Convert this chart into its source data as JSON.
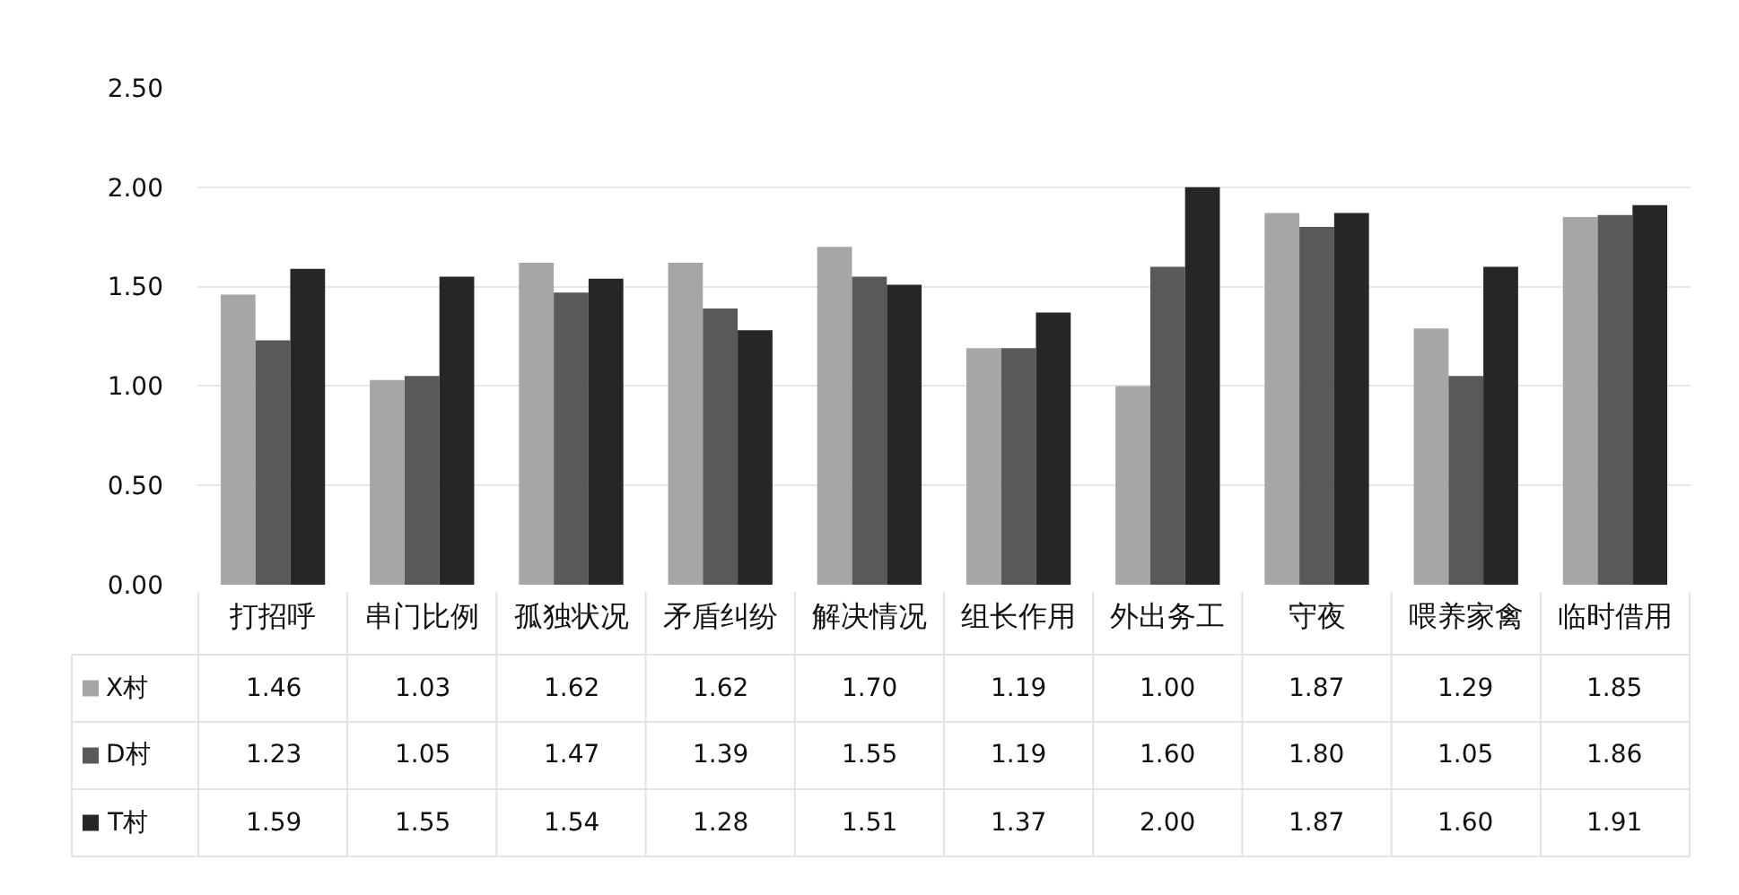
{
  "chart_data": {
    "type": "bar",
    "categories": [
      "打招呼",
      "串门比例",
      "孤独状况",
      "矛盾纠纷",
      "解决情况",
      "组长作用",
      "外出务工",
      "守夜",
      "喂养家禽",
      "临时借用"
    ],
    "series": [
      {
        "name": "X村",
        "color": "#a6a6a6",
        "values": [
          1.46,
          1.03,
          1.62,
          1.62,
          1.7,
          1.19,
          1.0,
          1.87,
          1.29,
          1.85
        ],
        "value_labels": [
          "1.46",
          "1.03",
          "1.62",
          "1.62",
          "1.70",
          "1.19",
          "1.00",
          "1.87",
          "1.29",
          "1.85"
        ]
      },
      {
        "name": "D村",
        "color": "#595959",
        "values": [
          1.23,
          1.05,
          1.47,
          1.39,
          1.55,
          1.19,
          1.6,
          1.8,
          1.05,
          1.86
        ],
        "value_labels": [
          "1.23",
          "1.05",
          "1.47",
          "1.39",
          "1.55",
          "1.19",
          "1.60",
          "1.80",
          "1.05",
          "1.86"
        ]
      },
      {
        "name": "T村",
        "color": "#262626",
        "values": [
          1.59,
          1.55,
          1.54,
          1.28,
          1.51,
          1.37,
          2.0,
          1.87,
          1.6,
          1.91
        ],
        "value_labels": [
          "1.59",
          "1.55",
          "1.54",
          "1.28",
          "1.51",
          "1.37",
          "2.00",
          "1.87",
          "1.60",
          "1.91"
        ]
      }
    ],
    "ylim": [
      0,
      2.5
    ],
    "yticks": [
      {
        "value": 0,
        "label": "0.00"
      },
      {
        "value": 0.5,
        "label": "0.50"
      },
      {
        "value": 1,
        "label": "1.00"
      },
      {
        "value": 1.5,
        "label": "1.50"
      },
      {
        "value": 2,
        "label": "2.00"
      },
      {
        "value": 2.5,
        "label": "2.50"
      }
    ],
    "grid": "y",
    "legend": "bottom left"
  }
}
